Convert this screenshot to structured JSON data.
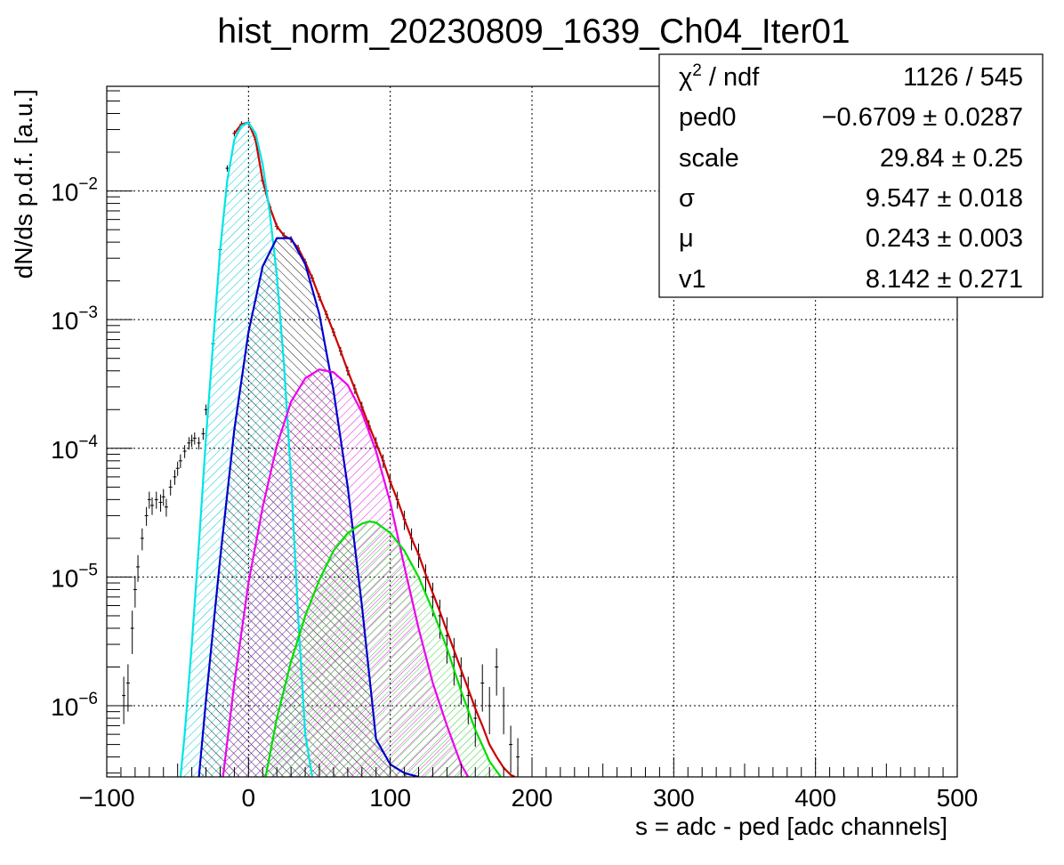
{
  "chart_data": {
    "type": "line",
    "title": "hist_norm_20230809_1639_Ch04_Iter01",
    "xlabel": "s = adc - ped [adc channels]",
    "ylabel": "dN/ds p.d.f. [a.u.]",
    "xlim": [
      -100,
      500
    ],
    "ylim": [
      2.8e-07,
      0.065
    ],
    "yscale": "log",
    "grid": true,
    "x_ticks": [
      -100,
      0,
      100,
      200,
      300,
      400,
      500
    ],
    "x_tick_labels": [
      "−100",
      "0",
      "100",
      "200",
      "300",
      "400",
      "500"
    ],
    "y_ticks": [
      1e-06,
      1e-05,
      0.0001,
      0.001,
      0.01
    ],
    "y_tick_labels": [
      "10^-6",
      "10^-5",
      "10^-4",
      "10^-3",
      "10^-2"
    ],
    "stats_box": {
      "position": "top-right",
      "rows": [
        {
          "label": "χ² / ndf",
          "value": "1126 / 545"
        },
        {
          "label": "ped0",
          "value": "−0.6709 ± 0.0287"
        },
        {
          "label": "scale",
          "value": "29.84 ± 0.25"
        },
        {
          "label": "σ",
          "value": "9.547 ± 0.018"
        },
        {
          "label": "μ",
          "value": "0.243 ± 0.003"
        },
        {
          "label": "v1",
          "value": "8.142 ± 0.271"
        }
      ]
    },
    "series": [
      {
        "color": "#000000",
        "style": "histogram",
        "x": [
          -88,
          -85,
          -82,
          -80,
          -78,
          -75,
          -72,
          -70,
          -68,
          -65,
          -62,
          -60,
          -58,
          -55,
          -52,
          -50,
          -48,
          -45,
          -42,
          -40,
          -38,
          -35,
          -32,
          -30,
          -25,
          -20,
          -15,
          -10,
          -5,
          0,
          5,
          10,
          15,
          20,
          25,
          30,
          35,
          40,
          45,
          50,
          55,
          60,
          65,
          70,
          75,
          80,
          85,
          90,
          95,
          100,
          105,
          110,
          115,
          120,
          125,
          130,
          135,
          140,
          145,
          150,
          155,
          160,
          165,
          170,
          175,
          180,
          185,
          190
        ],
        "y": [
          1.2e-06,
          1.5e-06,
          4e-06,
          8e-06,
          1.2e-05,
          2e-05,
          3e-05,
          4e-05,
          3.6e-05,
          4e-05,
          3.8e-05,
          4.2e-05,
          3.5e-05,
          5e-05,
          6e-05,
          7e-05,
          8e-05,
          9.5e-05,
          0.00011,
          0.000115,
          0.00012,
          0.00011,
          0.00013,
          0.0002,
          0.00065,
          0.0035,
          0.015,
          0.028,
          0.033,
          0.034,
          0.025,
          0.012,
          0.0075,
          0.0053,
          0.0045,
          0.0042,
          0.0036,
          0.0028,
          0.0021,
          0.0015,
          0.0011,
          0.0008,
          0.00057,
          0.0004,
          0.00029,
          0.00021,
          0.00015,
          0.00011,
          8e-05,
          5.5e-05,
          4e-05,
          2.8e-05,
          2e-05,
          1.5e-05,
          1e-05,
          7e-06,
          5e-06,
          3.5e-06,
          2.4e-06,
          1.7e-06,
          1.2e-06,
          8e-07,
          1.5e-06,
          1e-06,
          2e-06,
          1e-06,
          5e-07,
          4e-07
        ]
      },
      {
        "color": "#cc0000",
        "style": "line",
        "x": [
          -10,
          -5,
          0,
          5,
          10,
          15,
          20,
          25,
          30,
          35,
          40,
          45,
          50,
          55,
          60,
          65,
          70,
          75,
          80,
          85,
          90,
          95,
          100,
          105,
          110,
          115,
          120,
          125,
          130,
          135,
          140,
          145,
          150,
          155,
          160,
          165,
          170,
          175,
          180,
          185,
          188
        ],
        "y": [
          0.028,
          0.033,
          0.034,
          0.025,
          0.012,
          0.0075,
          0.0053,
          0.0045,
          0.0042,
          0.0036,
          0.0028,
          0.0021,
          0.0015,
          0.0011,
          0.0008,
          0.00057,
          0.0004,
          0.00029,
          0.00021,
          0.00015,
          0.00011,
          8e-05,
          5.5e-05,
          4e-05,
          2.8e-05,
          2e-05,
          1.5e-05,
          1.05e-05,
          7.5e-06,
          5.4e-06,
          3.8e-06,
          2.7e-06,
          1.9e-06,
          1.35e-06,
          9.5e-07,
          7e-07,
          5e-07,
          4e-07,
          3.3e-07,
          2.9e-07,
          2.8e-07
        ]
      },
      {
        "color": "#00e5e5",
        "style": "filled-curve",
        "x": [
          -48,
          -45,
          -40,
          -35,
          -30,
          -25,
          -20,
          -15,
          -10,
          -5,
          0,
          5,
          10,
          15,
          20,
          25,
          30,
          35,
          40,
          45
        ],
        "y": [
          2.8e-07,
          6e-07,
          3e-06,
          1.8e-05,
          0.00012,
          0.00065,
          0.0035,
          0.012,
          0.025,
          0.032,
          0.034,
          0.028,
          0.016,
          0.0068,
          0.0022,
          0.00045,
          6e-05,
          5e-06,
          6e-07,
          2.8e-07
        ]
      },
      {
        "color": "#0000cc",
        "style": "filled-curve",
        "x": [
          -35,
          -30,
          -20,
          -10,
          0,
          10,
          20,
          30,
          40,
          50,
          60,
          70,
          80,
          90,
          100,
          110,
          115,
          120
        ],
        "y": [
          2.8e-07,
          1.1e-06,
          1.4e-05,
          0.00014,
          0.0008,
          0.0026,
          0.0043,
          0.0043,
          0.0027,
          0.0011,
          0.00028,
          5e-05,
          6e-06,
          5.5e-07,
          3.5e-07,
          3e-07,
          2.9e-07,
          2.8e-07
        ]
      },
      {
        "color": "#ee00ee",
        "style": "filled-curve",
        "x": [
          -18,
          -10,
          0,
          10,
          20,
          30,
          40,
          50,
          60,
          70,
          80,
          90,
          100,
          110,
          120,
          130,
          140,
          150,
          155
        ],
        "y": [
          2.8e-07,
          1.5e-06,
          9e-06,
          3.5e-05,
          0.000105,
          0.00023,
          0.00035,
          0.00041,
          0.00039,
          0.00031,
          0.00019,
          9.5e-05,
          3.8e-05,
          1.2e-05,
          4e-06,
          1.5e-06,
          7e-07,
          3.5e-07,
          2.8e-07
        ]
      },
      {
        "color": "#00dd00",
        "style": "filled-curve",
        "x": [
          12,
          20,
          30,
          40,
          50,
          60,
          70,
          80,
          85,
          90,
          100,
          110,
          120,
          130,
          140,
          150,
          160,
          170,
          178
        ],
        "y": [
          2.8e-07,
          8e-07,
          2.2e-06,
          5e-06,
          9.5e-06,
          1.6e-05,
          2.2e-05,
          2.6e-05,
          2.7e-05,
          2.65e-05,
          2.2e-05,
          1.6e-05,
          1e-05,
          5.5e-06,
          2.8e-06,
          1.3e-06,
          6.5e-07,
          3.7e-07,
          2.8e-07
        ]
      }
    ]
  }
}
